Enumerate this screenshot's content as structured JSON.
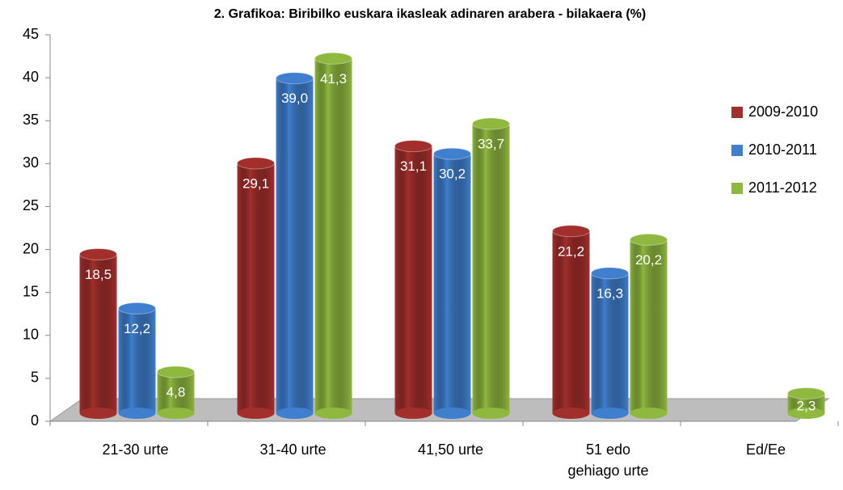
{
  "chart_data": {
    "type": "bar",
    "title": "2. Grafikoa:  Biribilko  euskara ikasleak  adinaren arabera - bilakaera (%)",
    "categories": [
      "21-30 urte",
      "31-40 urte",
      "41,50 urte",
      "51 edo gehiago urte",
      "Ed/Ee"
    ],
    "series": [
      {
        "name": "2009-2010",
        "color": "#a32f2c",
        "values": [
          18.5,
          29.1,
          31.1,
          21.2,
          null
        ],
        "value_labels": [
          "18,5",
          "29,1",
          "31,1",
          "21,2",
          null
        ]
      },
      {
        "name": "2010-2011",
        "color": "#3f7fce",
        "values": [
          12.2,
          39.0,
          30.2,
          16.3,
          null
        ],
        "value_labels": [
          "12,2",
          "39,0",
          "30,2",
          "16,3",
          null
        ]
      },
      {
        "name": "2011-2012",
        "color": "#8fb83f",
        "values": [
          4.8,
          41.3,
          33.7,
          20.2,
          2.3
        ],
        "value_labels": [
          "4,8",
          "41,3",
          "33,7",
          "20,2",
          "2,3"
        ]
      }
    ],
    "ylim": [
      0,
      45
    ],
    "yticks": [
      0,
      5,
      10,
      15,
      20,
      25,
      30,
      35,
      40,
      45
    ],
    "legend": "right"
  }
}
